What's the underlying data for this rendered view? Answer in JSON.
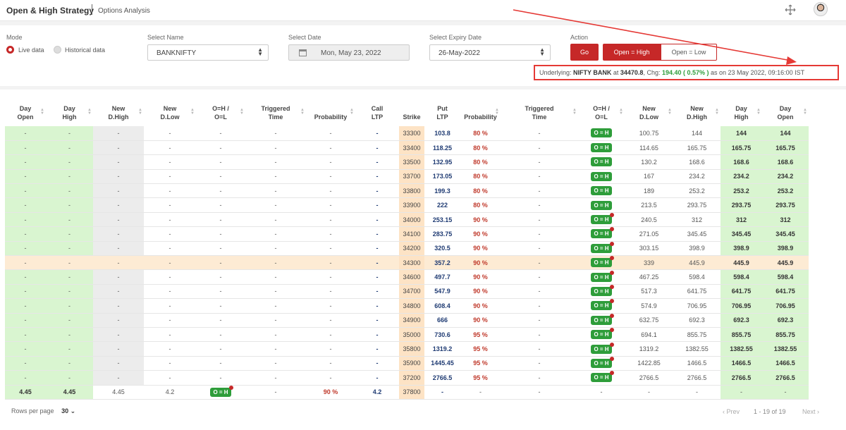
{
  "header": {
    "title": "Open & High Strategy",
    "subtitle": "Options Analysis"
  },
  "filters": {
    "mode_label": "Mode",
    "mode_live": "Live data",
    "mode_hist": "Historical data",
    "name_label": "Select Name",
    "name_value": "BANKNIFTY",
    "date_label": "Select Date",
    "date_value": "Mon, May 23, 2022",
    "expiry_label": "Select Expiry Date",
    "expiry_value": "26-May-2022",
    "action_label": "Action",
    "go": "Go",
    "open_high": "Open = High",
    "open_low": "Open = Low"
  },
  "underlying": {
    "prefix": "Underlying: ",
    "name": "NIFTY BANK",
    "at": " at ",
    "price": "34470.8",
    "chg_label": ", Chg: ",
    "chg": "194.40 ( 0.57% )",
    "suffix": " as on 23 May 2022, 09:16:00 IST"
  },
  "columns": [
    [
      "Day",
      "Open"
    ],
    [
      "Day",
      "High"
    ],
    [
      "New",
      "D.High"
    ],
    [
      "New",
      "D.Low"
    ],
    [
      "O=H /",
      "O=L"
    ],
    [
      "Triggered",
      "Time"
    ],
    [
      "",
      "Probability"
    ],
    [
      "Call",
      "LTP"
    ],
    [
      "",
      "Strike"
    ],
    [
      "Put",
      "LTP"
    ],
    [
      "",
      "Probability"
    ],
    [
      "Triggered",
      "Time"
    ],
    [
      "O=H /",
      "O=L"
    ],
    [
      "New",
      "D.Low"
    ],
    [
      "New",
      "D.High"
    ],
    [
      "Day",
      "High"
    ],
    [
      "Day",
      "Open"
    ]
  ],
  "rows": [
    {
      "strike": "33300",
      "put_ltp": "103.8",
      "prob": "80 %",
      "time": "-",
      "badge": "O = H",
      "dot": false,
      "dlow": "100.75",
      "dhigh": "144",
      "high": "144",
      "open": "144"
    },
    {
      "strike": "33400",
      "put_ltp": "118.25",
      "prob": "80 %",
      "time": "-",
      "badge": "O = H",
      "dot": false,
      "dlow": "114.65",
      "dhigh": "165.75",
      "high": "165.75",
      "open": "165.75"
    },
    {
      "strike": "33500",
      "put_ltp": "132.95",
      "prob": "80 %",
      "time": "-",
      "badge": "O = H",
      "dot": false,
      "dlow": "130.2",
      "dhigh": "168.6",
      "high": "168.6",
      "open": "168.6"
    },
    {
      "strike": "33700",
      "put_ltp": "173.05",
      "prob": "80 %",
      "time": "-",
      "badge": "O = H",
      "dot": false,
      "dlow": "167",
      "dhigh": "234.2",
      "high": "234.2",
      "open": "234.2"
    },
    {
      "strike": "33800",
      "put_ltp": "199.3",
      "prob": "80 %",
      "time": "-",
      "badge": "O = H",
      "dot": false,
      "dlow": "189",
      "dhigh": "253.2",
      "high": "253.2",
      "open": "253.2"
    },
    {
      "strike": "33900",
      "put_ltp": "222",
      "prob": "80 %",
      "time": "-",
      "badge": "O = H",
      "dot": false,
      "dlow": "213.5",
      "dhigh": "293.75",
      "high": "293.75",
      "open": "293.75"
    },
    {
      "strike": "34000",
      "put_ltp": "253.15",
      "prob": "90 %",
      "time": "-",
      "badge": "O = H",
      "dot": true,
      "dlow": "240.5",
      "dhigh": "312",
      "high": "312",
      "open": "312"
    },
    {
      "strike": "34100",
      "put_ltp": "283.75",
      "prob": "90 %",
      "time": "-",
      "badge": "O = H",
      "dot": true,
      "dlow": "271.05",
      "dhigh": "345.45",
      "high": "345.45",
      "open": "345.45"
    },
    {
      "strike": "34200",
      "put_ltp": "320.5",
      "prob": "90 %",
      "time": "-",
      "badge": "O = H",
      "dot": true,
      "dlow": "303.15",
      "dhigh": "398.9",
      "high": "398.9",
      "open": "398.9"
    },
    {
      "strike": "34300",
      "put_ltp": "357.2",
      "prob": "90 %",
      "time": "-",
      "badge": "O = H",
      "dot": true,
      "dlow": "339",
      "dhigh": "445.9",
      "high": "445.9",
      "open": "445.9",
      "hl": true
    },
    {
      "strike": "34600",
      "put_ltp": "497.7",
      "prob": "90 %",
      "time": "-",
      "badge": "O = H",
      "dot": true,
      "dlow": "467.25",
      "dhigh": "598.4",
      "high": "598.4",
      "open": "598.4"
    },
    {
      "strike": "34700",
      "put_ltp": "547.9",
      "prob": "90 %",
      "time": "-",
      "badge": "O = H",
      "dot": true,
      "dlow": "517.3",
      "dhigh": "641.75",
      "high": "641.75",
      "open": "641.75"
    },
    {
      "strike": "34800",
      "put_ltp": "608.4",
      "prob": "90 %",
      "time": "-",
      "badge": "O = H",
      "dot": true,
      "dlow": "574.9",
      "dhigh": "706.95",
      "high": "706.95",
      "open": "706.95"
    },
    {
      "strike": "34900",
      "put_ltp": "666",
      "prob": "90 %",
      "time": "-",
      "badge": "O = H",
      "dot": true,
      "dlow": "632.75",
      "dhigh": "692.3",
      "high": "692.3",
      "open": "692.3"
    },
    {
      "strike": "35000",
      "put_ltp": "730.6",
      "prob": "95 %",
      "time": "-",
      "badge": "O = H",
      "dot": true,
      "dlow": "694.1",
      "dhigh": "855.75",
      "high": "855.75",
      "open": "855.75"
    },
    {
      "strike": "35800",
      "put_ltp": "1319.2",
      "prob": "95 %",
      "time": "-",
      "badge": "O = H",
      "dot": true,
      "dlow": "1319.2",
      "dhigh": "1382.55",
      "high": "1382.55",
      "open": "1382.55"
    },
    {
      "strike": "35900",
      "put_ltp": "1445.45",
      "prob": "95 %",
      "time": "-",
      "badge": "O = H",
      "dot": true,
      "dlow": "1422.85",
      "dhigh": "1466.5",
      "high": "1466.5",
      "open": "1466.5"
    },
    {
      "strike": "37200",
      "put_ltp": "2766.5",
      "prob": "95 %",
      "time": "-",
      "badge": "O = H",
      "dot": true,
      "dlow": "2766.5",
      "dhigh": "2766.5",
      "high": "2766.5",
      "open": "2766.5"
    }
  ],
  "last_row": {
    "day_open": "4.45",
    "day_high": "4.45",
    "dhigh": "4.45",
    "dlow": "4.2",
    "badge": "O = H",
    "time": "-",
    "prob": "90 %",
    "call_ltp": "4.2",
    "strike": "37800",
    "put_ltp": "-",
    "put_prob": "-",
    "put_time": "-",
    "put_badge": "-",
    "put_dlow": "-",
    "put_dhigh": "-",
    "put_high": "-",
    "put_open": "-"
  },
  "footer": {
    "rows_per_page_label": "Rows per page",
    "rows_per_page": "30",
    "prev": "Prev",
    "range": "1 - 19 of 19",
    "next": "Next"
  },
  "colors": {
    "accent": "#c62828",
    "green_cell": "#d9f5d0",
    "strike_cell": "#fde3c5",
    "badge": "#2e9d3a"
  }
}
